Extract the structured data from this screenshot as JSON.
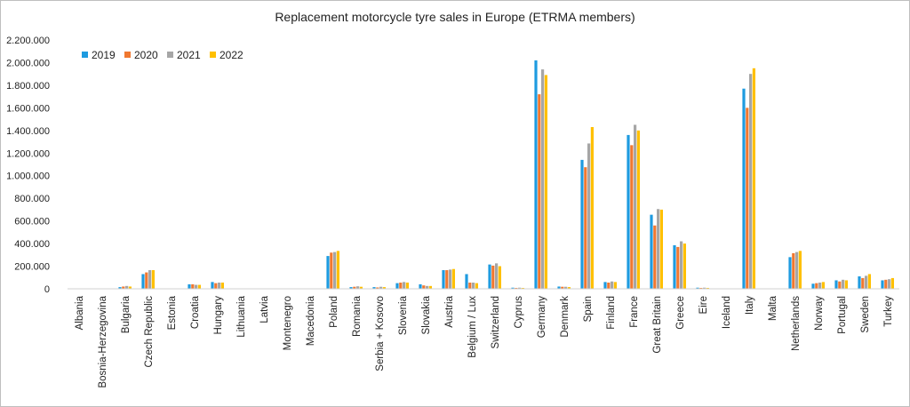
{
  "chart_data": {
    "type": "bar",
    "title": "Replacement motorcycle tyre sales in Europe (ETRMA members)",
    "xlabel": "",
    "ylabel": "",
    "ylim": [
      0,
      2200000
    ],
    "yticks": [
      0,
      200000,
      400000,
      600000,
      800000,
      1000000,
      1200000,
      1400000,
      1600000,
      1800000,
      2000000,
      2200000
    ],
    "ytick_labels": [
      "0",
      "200.000",
      "400.000",
      "600.000",
      "800.000",
      "1.000.000",
      "1.200.000",
      "1.400.000",
      "1.600.000",
      "1.800.000",
      "2.000.000",
      "2.200.000"
    ],
    "grid": false,
    "legend_position": "top-left",
    "categories": [
      "Albania",
      "Bosnia-Herzegovina",
      "Bulgaria",
      "Czech Republic",
      "Estonia",
      "Croatia",
      "Hungary",
      "Lithuania",
      "Latvia",
      "Montenegro",
      "Macedonia",
      "Poland",
      "Romania",
      "Serbia + Kosovo",
      "Slovenia",
      "Slovakia",
      "Austria",
      "Belgium / Lux",
      "Switzerland",
      "Cyprus",
      "Germany",
      "Denmark",
      "Spain",
      "Finland",
      "France",
      "Great Britain",
      "Greece",
      "Eire",
      "Iceland",
      "Italy",
      "Malta",
      "Netherlands",
      "Norway",
      "Portugal",
      "Sweden",
      "Turkey"
    ],
    "series": [
      {
        "name": "2019",
        "color": "#1e9be0",
        "values": [
          0,
          0,
          15000,
          130000,
          0,
          40000,
          60000,
          0,
          0,
          0,
          0,
          290000,
          15000,
          15000,
          50000,
          40000,
          165000,
          130000,
          215000,
          10000,
          2020000,
          20000,
          1140000,
          60000,
          1360000,
          655000,
          385000,
          10000,
          0,
          1770000,
          0,
          280000,
          45000,
          75000,
          110000,
          75000
        ]
      },
      {
        "name": "2020",
        "color": "#f07830",
        "values": [
          0,
          0,
          20000,
          145000,
          0,
          40000,
          50000,
          0,
          0,
          0,
          0,
          320000,
          18000,
          12000,
          55000,
          30000,
          165000,
          55000,
          205000,
          8000,
          1720000,
          18000,
          1075000,
          55000,
          1270000,
          560000,
          370000,
          8000,
          0,
          1600000,
          0,
          315000,
          50000,
          65000,
          95000,
          80000
        ]
      },
      {
        "name": "2021",
        "color": "#a6a6a6",
        "values": [
          0,
          0,
          25000,
          165000,
          0,
          35000,
          55000,
          0,
          0,
          0,
          0,
          325000,
          22000,
          18000,
          60000,
          25000,
          170000,
          55000,
          225000,
          10000,
          1940000,
          18000,
          1285000,
          65000,
          1450000,
          705000,
          420000,
          10000,
          0,
          1900000,
          0,
          325000,
          55000,
          80000,
          115000,
          85000
        ]
      },
      {
        "name": "2022",
        "color": "#ffc000",
        "values": [
          0,
          0,
          20000,
          165000,
          0,
          35000,
          55000,
          0,
          0,
          0,
          0,
          335000,
          18000,
          15000,
          55000,
          25000,
          175000,
          50000,
          200000,
          8000,
          1890000,
          15000,
          1430000,
          60000,
          1400000,
          700000,
          400000,
          8000,
          0,
          1950000,
          0,
          335000,
          60000,
          75000,
          130000,
          95000
        ]
      }
    ]
  }
}
